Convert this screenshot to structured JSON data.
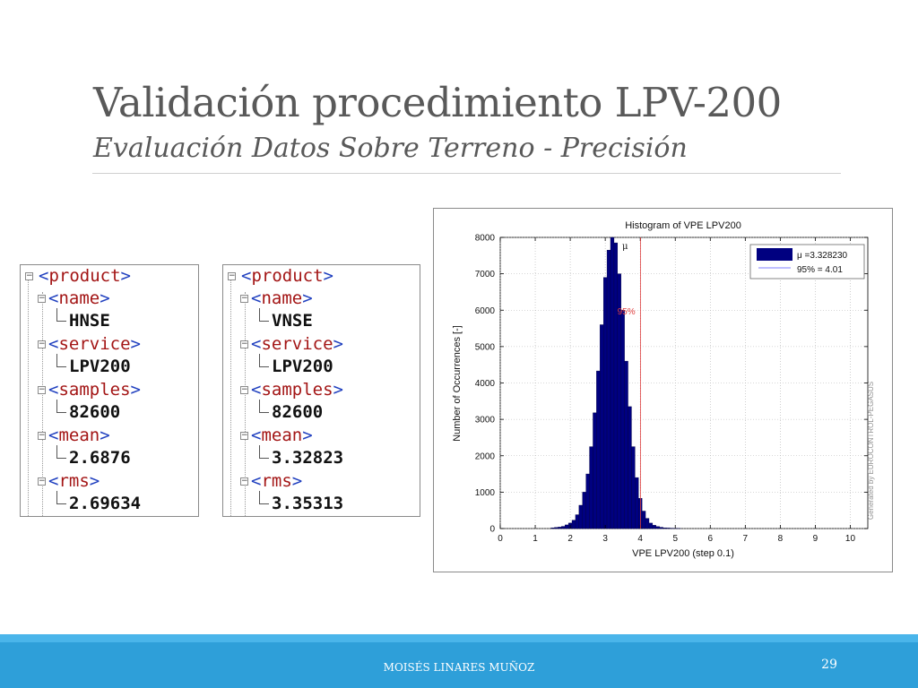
{
  "slide": {
    "title": "Validación procedimiento LPV-200",
    "subtitle": "Evaluación Datos Sobre Terreno - Precisión",
    "footer_author": "MOISÉS LINARES MUÑOZ",
    "page_number": "29"
  },
  "xml_panels": [
    {
      "root": "product",
      "fields": [
        {
          "tag": "name",
          "value": "HNSE"
        },
        {
          "tag": "service",
          "value": "LPV200"
        },
        {
          "tag": "samples",
          "value": "82600"
        },
        {
          "tag": "mean",
          "value": "2.6876"
        },
        {
          "tag": "rms",
          "value": "2.69634"
        }
      ]
    },
    {
      "root": "product",
      "fields": [
        {
          "tag": "name",
          "value": "VNSE"
        },
        {
          "tag": "service",
          "value": "LPV200"
        },
        {
          "tag": "samples",
          "value": "82600"
        },
        {
          "tag": "mean",
          "value": "3.32823"
        },
        {
          "tag": "rms",
          "value": "3.35313"
        }
      ]
    }
  ],
  "chart_data": {
    "type": "bar",
    "title": "Histogram of VPE LPV200",
    "xlabel": "VPE LPV200 (step 0.1)",
    "ylabel": "Number of Occurrences [-]",
    "watermark": "Generated by EUROCONTROL-PEGASUS",
    "xlim": [
      0,
      10.5
    ],
    "ylim": [
      0,
      8000
    ],
    "xticks": [
      "0",
      "1",
      "2",
      "3",
      "4",
      "5",
      "6",
      "7",
      "8",
      "9",
      "10"
    ],
    "yticks": [
      "0",
      "1000",
      "2000",
      "3000",
      "4000",
      "5000",
      "6000",
      "7000",
      "8000"
    ],
    "grid": true,
    "bin_width": 0.1,
    "bar_color": "#000080",
    "marker_color": "#e04040",
    "series": [
      {
        "name": "μ =3.328230",
        "x": [
          1.5,
          1.6,
          1.7,
          1.8,
          1.9,
          2.0,
          2.1,
          2.2,
          2.3,
          2.4,
          2.5,
          2.6,
          2.7,
          2.8,
          2.9,
          3.0,
          3.1,
          3.2,
          3.3,
          3.4,
          3.5,
          3.6,
          3.7,
          3.8,
          3.9,
          4.0,
          4.1,
          4.2,
          4.3,
          4.4,
          4.5,
          4.6,
          4.7,
          4.8,
          4.9,
          5.0,
          5.1
        ],
        "values": [
          20,
          30,
          40,
          60,
          100,
          150,
          230,
          380,
          640,
          1000,
          1500,
          2250,
          3180,
          4330,
          5600,
          6900,
          7650,
          8000,
          7850,
          7000,
          6000,
          4600,
          3350,
          2250,
          1400,
          830,
          480,
          280,
          150,
          90,
          55,
          35,
          20,
          15,
          10,
          8,
          5
        ]
      }
    ],
    "legend": {
      "position": "top-right",
      "entries": [
        "μ =3.328230",
        "95% = 4.01"
      ]
    },
    "annotations": {
      "mean": 3.32823,
      "mean_label": "μ",
      "p95": 4.01,
      "p95_label": "95%"
    }
  }
}
